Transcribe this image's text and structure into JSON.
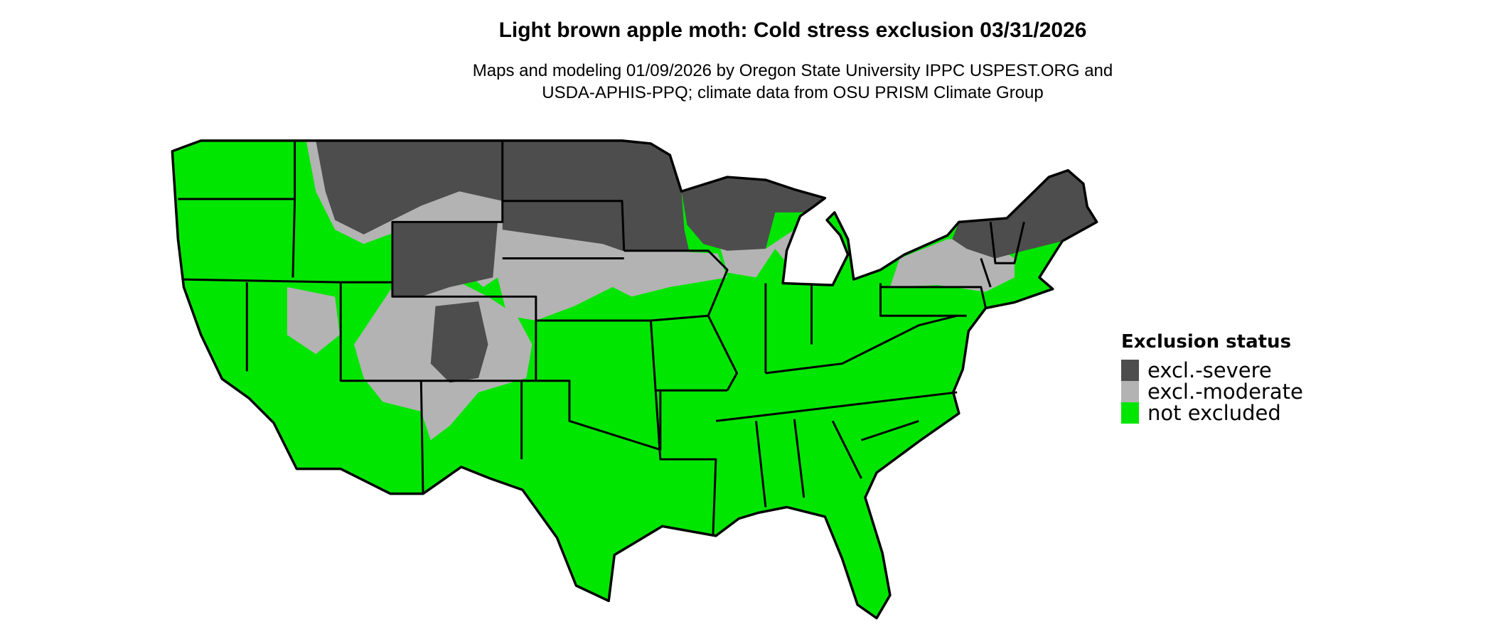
{
  "title": "Light brown apple moth: Cold stress exclusion 03/31/2026",
  "subtitle_line1": "Maps and modeling 01/09/2026 by Oregon State University IPPC USPEST.ORG and",
  "subtitle_line2": "USDA-APHIS-PPQ; climate data from OSU PRISM Climate Group",
  "legend": {
    "title": "Exclusion status",
    "items": [
      {
        "label": "excl.-severe",
        "color": "#4d4d4d"
      },
      {
        "label": "excl.-moderate",
        "color": "#b3b3b3"
      },
      {
        "label": "not excluded",
        "color": "#00e600"
      }
    ]
  },
  "colors": {
    "border": "#000000",
    "background": "#ffffff"
  }
}
